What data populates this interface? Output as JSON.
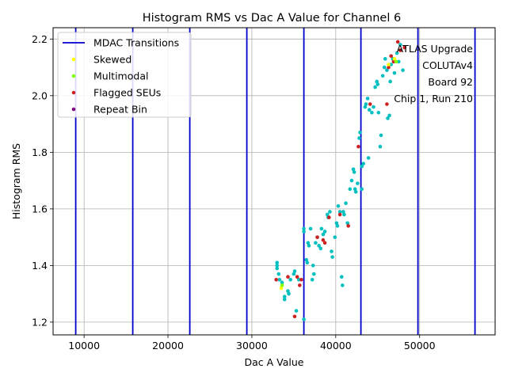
{
  "chart_data": {
    "type": "scatter",
    "title": "Histogram RMS vs Dac A Value for Channel 6",
    "xlabel": "Dac A Value",
    "ylabel": "Histogram RMS",
    "xlim": [
      6300,
      59000
    ],
    "ylim": [
      1.155,
      2.24
    ],
    "xticks": [
      10000,
      20000,
      30000,
      40000,
      50000
    ],
    "xtick_labels": [
      "10000",
      "20000",
      "30000",
      "40000",
      "50000"
    ],
    "yticks": [
      1.2,
      1.4,
      1.6,
      1.8,
      2.0,
      2.2
    ],
    "ytick_labels": [
      "1.2",
      "1.4",
      "1.6",
      "1.8",
      "2.0",
      "2.2"
    ],
    "grid": true,
    "legend_position": "upper-left",
    "legend": [
      {
        "label": "MDAC Transitions",
        "kind": "line",
        "color": "#0000cc"
      },
      {
        "label": "Skewed",
        "kind": "point",
        "color": "#ffff00"
      },
      {
        "label": "Multimodal",
        "kind": "point",
        "color": "#7fff00"
      },
      {
        "label": "Flagged SEUs",
        "kind": "point",
        "color": "#cc2222"
      },
      {
        "label": "Repeat Bin",
        "kind": "point",
        "color": "#800080"
      }
    ],
    "annotation": [
      "ATLAS Upgrade",
      "COLUTAv4",
      "Board 92",
      "Chip 1, Run 210"
    ],
    "mdac_transitions": [
      9000,
      15800,
      22600,
      29400,
      36200,
      43000,
      49800,
      56600
    ],
    "series": [
      {
        "color": "#00bfbf",
        "points": [
          [
            33000,
            1.4
          ],
          [
            33000,
            1.41
          ],
          [
            33000,
            1.39
          ],
          [
            33200,
            1.37
          ],
          [
            33300,
            1.35
          ],
          [
            33600,
            1.34
          ],
          [
            33900,
            1.29
          ],
          [
            33900,
            1.28
          ],
          [
            34300,
            1.31
          ],
          [
            34400,
            1.3
          ],
          [
            34600,
            1.35
          ],
          [
            35000,
            1.37
          ],
          [
            35100,
            1.38
          ],
          [
            35300,
            1.24
          ],
          [
            35600,
            1.35
          ],
          [
            36200,
            1.21
          ],
          [
            36200,
            1.53
          ],
          [
            36200,
            1.52
          ],
          [
            36500,
            1.42
          ],
          [
            36600,
            1.41
          ],
          [
            36700,
            1.48
          ],
          [
            36800,
            1.47
          ],
          [
            37000,
            1.53
          ],
          [
            37200,
            1.35
          ],
          [
            37300,
            1.4
          ],
          [
            37400,
            1.37
          ],
          [
            37600,
            1.48
          ],
          [
            37800,
            1.5
          ],
          [
            38000,
            1.47
          ],
          [
            38200,
            1.46
          ],
          [
            38300,
            1.53
          ],
          [
            38500,
            1.51
          ],
          [
            38700,
            1.52
          ],
          [
            39000,
            1.58
          ],
          [
            39100,
            1.57
          ],
          [
            39300,
            1.59
          ],
          [
            39500,
            1.45
          ],
          [
            39600,
            1.43
          ],
          [
            39900,
            1.5
          ],
          [
            40100,
            1.55
          ],
          [
            40200,
            1.54
          ],
          [
            40300,
            1.61
          ],
          [
            40500,
            1.59
          ],
          [
            40700,
            1.36
          ],
          [
            40800,
            1.33
          ],
          [
            40900,
            1.59
          ],
          [
            41000,
            1.58
          ],
          [
            41200,
            1.62
          ],
          [
            41400,
            1.55
          ],
          [
            41700,
            1.67
          ],
          [
            41900,
            1.7
          ],
          [
            42100,
            1.74
          ],
          [
            42200,
            1.73
          ],
          [
            42300,
            1.67
          ],
          [
            42400,
            1.66
          ],
          [
            42600,
            1.69
          ],
          [
            42800,
            1.85
          ],
          [
            42900,
            1.87
          ],
          [
            43100,
            1.67
          ],
          [
            43100,
            1.75
          ],
          [
            43300,
            1.76
          ],
          [
            43500,
            1.96
          ],
          [
            43600,
            1.97
          ],
          [
            43800,
            1.99
          ],
          [
            43900,
            1.78
          ],
          [
            44000,
            1.95
          ],
          [
            44300,
            1.94
          ],
          [
            44500,
            1.96
          ],
          [
            44700,
            2.03
          ],
          [
            44900,
            2.05
          ],
          [
            45000,
            2.04
          ],
          [
            45100,
            1.94
          ],
          [
            45300,
            1.82
          ],
          [
            45400,
            1.86
          ],
          [
            45600,
            2.07
          ],
          [
            45800,
            2.1
          ],
          [
            45900,
            2.13
          ],
          [
            46100,
            2.09
          ],
          [
            46200,
            1.92
          ],
          [
            46400,
            1.93
          ],
          [
            46500,
            2.05
          ],
          [
            46600,
            2.11
          ],
          [
            46800,
            2.13
          ],
          [
            47000,
            2.08
          ],
          [
            47300,
            2.15
          ],
          [
            47500,
            2.12
          ],
          [
            47700,
            2.18
          ],
          [
            48000,
            2.09
          ]
        ]
      },
      {
        "color": "#cc2222",
        "points": [
          [
            32900,
            1.35
          ],
          [
            34300,
            1.36
          ],
          [
            35100,
            1.22
          ],
          [
            35400,
            1.36
          ],
          [
            35700,
            1.33
          ],
          [
            35900,
            1.35
          ],
          [
            37800,
            1.5
          ],
          [
            38500,
            1.49
          ],
          [
            38700,
            1.48
          ],
          [
            39200,
            1.57
          ],
          [
            40500,
            1.58
          ],
          [
            41500,
            1.54
          ],
          [
            42700,
            1.82
          ],
          [
            44100,
            1.97
          ],
          [
            46100,
            1.97
          ],
          [
            46300,
            2.1
          ],
          [
            46600,
            2.14
          ],
          [
            46900,
            2.12
          ],
          [
            47400,
            2.19
          ],
          [
            47700,
            2.16
          ],
          [
            48200,
            2.17
          ]
        ]
      },
      {
        "color": "#ffff00",
        "points": [
          [
            33500,
            1.32
          ],
          [
            46300,
            2.11
          ],
          [
            47000,
            2.13
          ]
        ]
      },
      {
        "color": "#7fff00",
        "points": [
          [
            33600,
            1.33
          ],
          [
            47200,
            2.12
          ]
        ]
      }
    ]
  }
}
